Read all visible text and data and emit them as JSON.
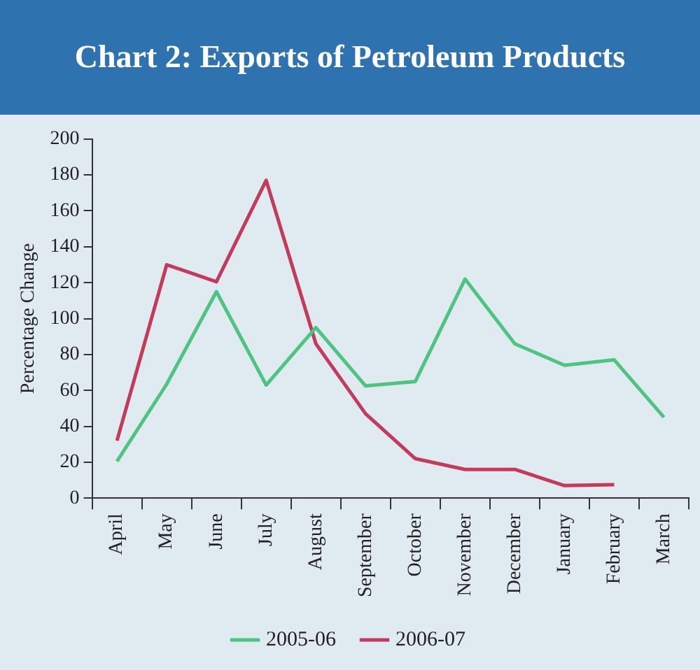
{
  "chart_data": {
    "type": "line",
    "title": "Chart 2: Exports of Petroleum Products",
    "ylabel": "Percentage Change",
    "categories": [
      "April",
      "May",
      "June",
      "July",
      "August",
      "September",
      "October",
      "November",
      "December",
      "January",
      "February",
      "March"
    ],
    "series": [
      {
        "name": "2005-06",
        "color": "#4dc47f",
        "values": [
          20.5,
          63.5,
          115,
          63,
          95,
          62.5,
          65,
          122,
          86,
          74,
          77,
          45
        ]
      },
      {
        "name": "2006-07",
        "color": "#c23b5a",
        "values": [
          32,
          130,
          120.5,
          177,
          86,
          47,
          22,
          16,
          16,
          7,
          7.5,
          null
        ]
      }
    ],
    "ylim": [
      0,
      200
    ],
    "yticks": [
      0,
      20,
      40,
      60,
      80,
      100,
      120,
      140,
      160,
      180,
      200
    ],
    "legend": "bottom",
    "marker": "none",
    "line_style": "solid"
  }
}
